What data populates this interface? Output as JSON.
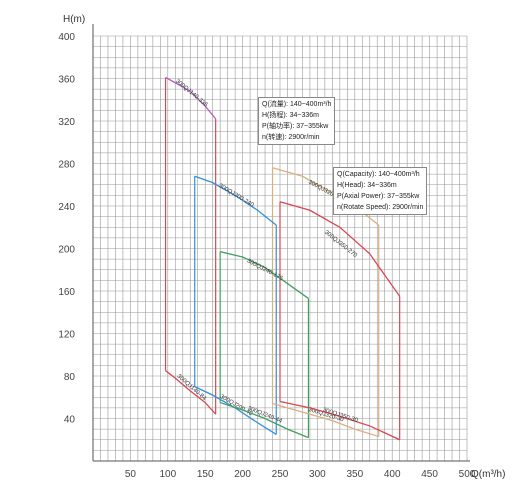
{
  "chart_data": {
    "type": "line",
    "title": "",
    "xlabel": "Q(m³/h)",
    "ylabel": "H(m)",
    "xlim": [
      0,
      500
    ],
    "ylim": [
      0,
      400
    ],
    "x_ticks": [
      50,
      100,
      150,
      200,
      250,
      300,
      350,
      400,
      450,
      500
    ],
    "y_ticks": [
      40,
      80,
      120,
      160,
      200,
      240,
      280,
      320,
      360,
      400
    ],
    "x_tick_labels": [
      "50",
      "100",
      "150",
      "200",
      "250",
      "300",
      "350",
      "400",
      "450",
      "500"
    ],
    "y_tick_labels": [
      "40",
      "80",
      "120",
      "160",
      "200",
      "240",
      "280",
      "320",
      "360",
      "400"
    ],
    "grid": true,
    "series": [
      {
        "name": "300QJ140-336",
        "color": "#b060c0",
        "x": [
          97,
          110,
          130,
          150,
          164
        ],
        "y": [
          361,
          356,
          348,
          334,
          322
        ]
      },
      {
        "name": "300QJ140-84",
        "color": "#d84850",
        "x": [
          97,
          110,
          130,
          150,
          164
        ],
        "y": [
          85,
          78,
          66,
          55,
          44
        ]
      },
      {
        "name": "300QJ200-240",
        "color": "#3090d8",
        "x": [
          136,
          160,
          190,
          220,
          245
        ],
        "y": [
          268,
          262,
          250,
          236,
          222
        ]
      },
      {
        "name": "300QJ200-40",
        "color": "#3090d8",
        "x": [
          136,
          160,
          190,
          220,
          245
        ],
        "y": [
          70,
          62,
          50,
          36,
          25
        ]
      },
      {
        "name": "300QJ240-176",
        "color": "#40a060",
        "x": [
          170,
          200,
          230,
          260,
          288
        ],
        "y": [
          197,
          192,
          182,
          167,
          153
        ]
      },
      {
        "name": "300QJ240-44",
        "color": "#40a060",
        "x": [
          170,
          200,
          230,
          260,
          288
        ],
        "y": [
          55,
          48,
          40,
          30,
          22
        ]
      },
      {
        "name": "300QJ320-240",
        "color": "#d8b080",
        "x": [
          240,
          280,
          320,
          350,
          382
        ],
        "y": [
          276,
          268,
          252,
          240,
          222
        ]
      },
      {
        "name": "300QJ320-30",
        "color": "#d8b080",
        "x": [
          240,
          280,
          320,
          350,
          382
        ],
        "y": [
          54,
          46,
          38,
          30,
          23
        ]
      },
      {
        "name": "300QJ350-270",
        "color": "#d84850",
        "x": [
          250,
          290,
          330,
          370,
          410
        ],
        "y": [
          244,
          236,
          220,
          195,
          155
        ]
      },
      {
        "name": "300QJ350-30",
        "color": "#d84850",
        "x": [
          250,
          290,
          330,
          370,
          410
        ],
        "y": [
          56,
          50,
          42,
          33,
          20
        ]
      }
    ],
    "envelope_lines": [
      {
        "color": "#d84850",
        "x": [
          164,
          164
        ],
        "y": [
          322,
          44
        ]
      },
      {
        "color": "#3090d8",
        "x": [
          245,
          245
        ],
        "y": [
          222,
          25
        ]
      },
      {
        "color": "#40a060",
        "x": [
          288,
          288
        ],
        "y": [
          153,
          22
        ]
      },
      {
        "color": "#d8b080",
        "x": [
          382,
          382
        ],
        "y": [
          222,
          23
        ]
      },
      {
        "color": "#d84850",
        "x": [
          410,
          410
        ],
        "y": [
          155,
          20
        ]
      },
      {
        "color": "#d84850",
        "x": [
          97,
          97
        ],
        "y": [
          361,
          85
        ]
      },
      {
        "color": "#3090d8",
        "x": [
          136,
          136
        ],
        "y": [
          268,
          70
        ]
      },
      {
        "color": "#40a060",
        "x": [
          170,
          170
        ],
        "y": [
          197,
          55
        ]
      },
      {
        "color": "#d8b080",
        "x": [
          240,
          240
        ],
        "y": [
          276,
          54
        ]
      },
      {
        "color": "#d84850",
        "x": [
          250,
          250
        ],
        "y": [
          244,
          56
        ]
      }
    ]
  },
  "infobox_cn": {
    "lines": [
      "Q(流量): 140~400m³/h",
      "H(扬程): 34~336m",
      "P(轴功率): 37~355kw",
      "n(转速): 2900r/min"
    ]
  },
  "infobox_en": {
    "lines": [
      "Q(Capacity): 140~400m³/h",
      "H(Head): 34~336m",
      "P(Axial Power): 37~355kw",
      "n(Rotate Speed): 2900r/min"
    ]
  }
}
